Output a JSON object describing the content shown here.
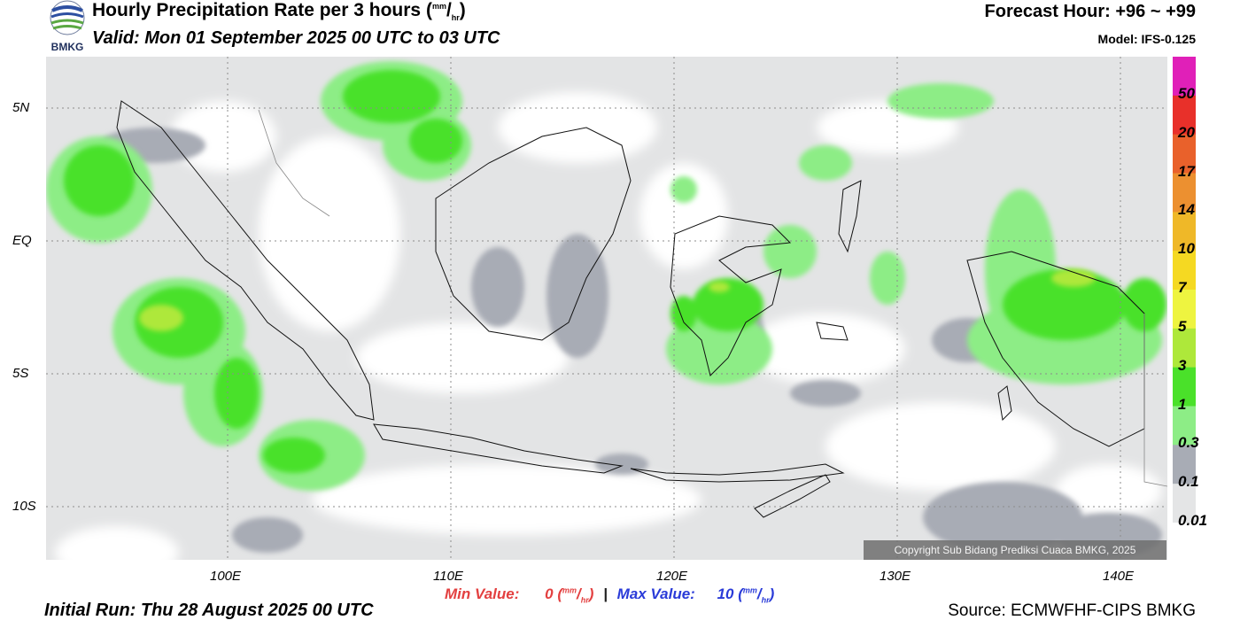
{
  "header": {
    "title": "Hourly Precipitation Rate per 3 hours",
    "title_unit_num": "mm",
    "title_unit_den": "hr",
    "valid": "Valid: Mon 01 September 2025 00 UTC to 03 UTC",
    "forecast_hour": "Forecast Hour: +96 ~ +99",
    "model": "Model: IFS-0.125"
  },
  "logo": {
    "text": "BMKG",
    "icon": "bmkg-logo"
  },
  "map": {
    "lat_labels": [
      "5N",
      "EQ",
      "5S",
      "10S"
    ],
    "lon_labels": [
      "100E",
      "110E",
      "120E",
      "130E",
      "140E"
    ],
    "copyright": "Copyright Sub Bidang Prediksi Cuaca BMKG, 2025"
  },
  "colorbar": {
    "labels": [
      "50",
      "20",
      "17",
      "14",
      "10",
      "7",
      "5",
      "3",
      "1",
      "0.3",
      "0.1",
      "0.01"
    ],
    "colors": [
      "#e020b8",
      "#e8302a",
      "#e9612b",
      "#ec9030",
      "#efb828",
      "#f5d922",
      "#eef440",
      "#aee83a",
      "#4ae12a",
      "#8ded86",
      "#a8acb5",
      "#e4e5e6"
    ]
  },
  "footer": {
    "min_label": "Min Value:",
    "min_value": "0",
    "max_label": "Max Value:",
    "max_value": "10",
    "separator": "|",
    "unit_num": "mm",
    "unit_den": "hr",
    "initial_run": "Initial Run: Thu 28 August 2025 00 UTC",
    "source": "Source: ECMWFHF-CIPS BMKG"
  }
}
